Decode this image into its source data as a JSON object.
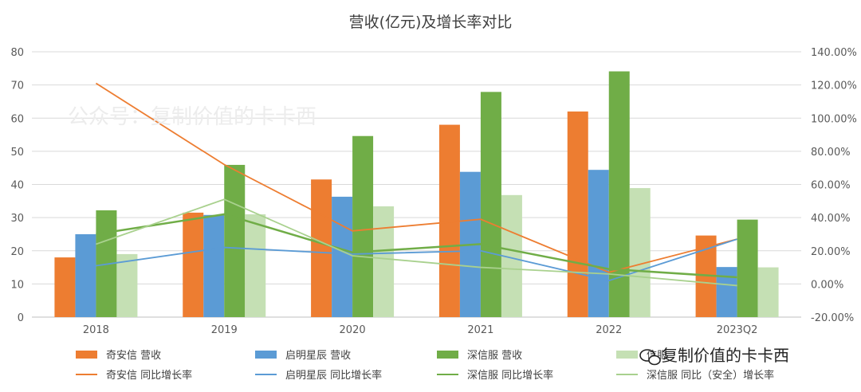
{
  "chart_data": {
    "type": "bar",
    "title": "营收(亿元)及增长率对比",
    "categories": [
      "2018",
      "2019",
      "2020",
      "2021",
      "2022",
      "2023Q2"
    ],
    "ylim": [
      0,
      80
    ],
    "y_ticks": [
      "0",
      "10",
      "20",
      "30",
      "40",
      "50",
      "60",
      "70",
      "80"
    ],
    "y2lim": [
      -0.2,
      1.4
    ],
    "y2_ticks": [
      "-20.00%",
      "0.00%",
      "20.00%",
      "40.00%",
      "60.00%",
      "80.00%",
      "100.00%",
      "120.00%",
      "140.00%"
    ],
    "grid": true,
    "legend_position": "bottom",
    "series": [
      {
        "name": "奇安信 营收",
        "kind": "bar",
        "color": "#ED7D31",
        "values": [
          18,
          31.5,
          41.5,
          58,
          62,
          24.6
        ]
      },
      {
        "name": "启明星辰 营收",
        "kind": "bar",
        "color": "#5B9BD5",
        "values": [
          25,
          30.8,
          36.3,
          43.8,
          44.4,
          15.1
        ]
      },
      {
        "name": "深信服 营收",
        "kind": "bar",
        "color": "#70AD47",
        "values": [
          32.2,
          45.9,
          54.6,
          67.9,
          74.1,
          29.4
        ]
      },
      {
        "name": "信服(安全)营收",
        "kind": "bar",
        "color": "#C5E0B4",
        "values": [
          19,
          31,
          33.4,
          36.8,
          38.9,
          15
        ]
      }
    ],
    "line_series": [
      {
        "name": "奇安信 同比增长率",
        "color": "#ED7D31",
        "values": [
          1.21,
          0.72,
          0.32,
          0.39,
          0.07,
          0.27
        ]
      },
      {
        "name": "启明星辰 同比增长率",
        "color": "#5B9BD5",
        "values": [
          0.11,
          0.22,
          0.18,
          0.2,
          0.02,
          0.27
        ]
      },
      {
        "name": "深信服 同比增长率",
        "color": "#70AD47",
        "values": [
          0.3,
          0.42,
          0.19,
          0.24,
          0.09,
          0.04
        ]
      },
      {
        "name": "深信服 同比（安全）增长率",
        "color": "#A9D18E",
        "values": [
          0.24,
          0.51,
          0.17,
          0.1,
          0.06,
          -0.01
        ]
      }
    ]
  },
  "legend": {
    "bars": [
      "奇安信 营收",
      "启明星辰 营收",
      "深信服 营收",
      "信服"
    ],
    "lines": [
      "奇安信 同比增长率",
      "启明星辰 同比增长率",
      "深信服 同比增长率",
      "深信服 同比（安全）增长率"
    ]
  },
  "watermark": {
    "main": "公众号：复制价值的卡卡西",
    "corner": "复制价值的卡卡西",
    "corner_icon": "wechat-icon"
  }
}
